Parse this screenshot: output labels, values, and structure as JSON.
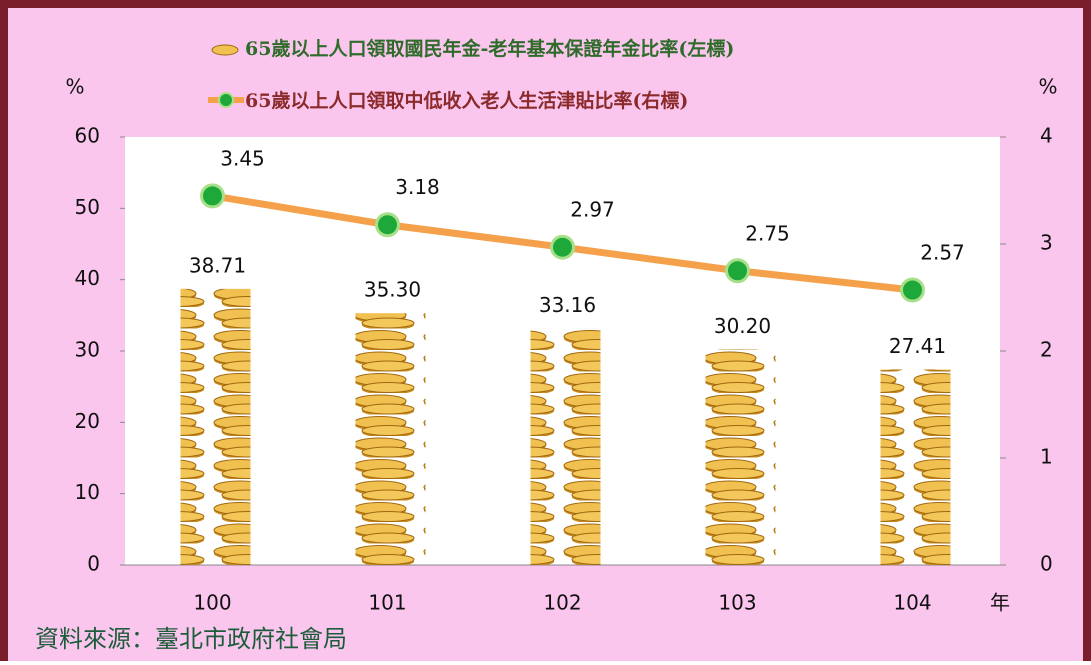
{
  "chart_data": {
    "type": "bar",
    "categories": [
      "100",
      "101",
      "102",
      "103",
      "104"
    ],
    "series": [
      {
        "name": "65歲以上人口領取國民年金-老年基本保證年金比率(左標)",
        "color": "#e8b030",
        "values": [
          38.71,
          35.3,
          33.16,
          30.2,
          27.41
        ],
        "value_labels": [
          "38.71",
          "35.30",
          "33.16",
          "30.20",
          "27.41"
        ]
      },
      {
        "name": "65歲以上人口領取中低收入老人生活津貼比率(右標)",
        "type": "line",
        "axis": "y2",
        "color": "#f5a04a",
        "marker_color": "#1ea83a",
        "values": [
          3.45,
          3.18,
          2.97,
          2.75,
          2.57
        ]
      }
    ],
    "ylim": [
      0,
      60
    ],
    "yticks": [
      0,
      10,
      20,
      30,
      40,
      50,
      60
    ],
    "y2lim": [
      0,
      4
    ],
    "y2ticks": [
      0,
      1,
      2,
      3,
      4
    ],
    "y_label": "%",
    "y2_label": "%",
    "x_label": "年",
    "source": "資料來源：臺北市政府社會局"
  }
}
